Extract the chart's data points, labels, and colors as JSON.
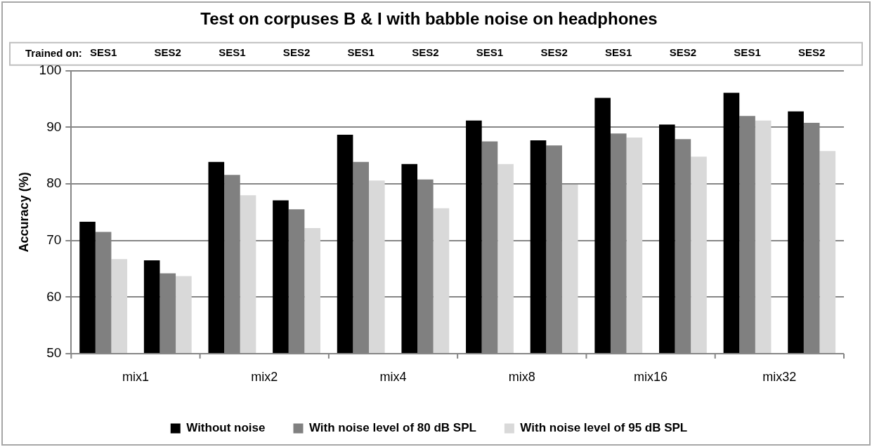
{
  "chart_data": {
    "type": "bar",
    "title": "Test on corpuses B & I with babble noise on headphones",
    "ylabel": "Accuracy (%)",
    "categories": [
      "SES1",
      "SES2",
      "SES1",
      "SES2",
      "SES1",
      "SES2",
      "SES1",
      "SES2",
      "SES1",
      "SES2",
      "SES1",
      "SES2"
    ],
    "series": [
      {
        "name": "Without noise",
        "color": "#000000",
        "values": [
          73.3,
          66.5,
          83.9,
          77.1,
          88.7,
          83.5,
          91.2,
          87.7,
          95.2,
          90.5,
          96.1,
          92.8
        ]
      },
      {
        "name": "With noise level of 80 dB SPL",
        "color": "#808080",
        "values": [
          71.5,
          64.2,
          81.6,
          75.5,
          83.9,
          80.8,
          87.5,
          86.8,
          88.9,
          87.9,
          92.0,
          90.8
        ]
      },
      {
        "name": "With noise level of 95 dB SPL",
        "color": "#d9d9d9",
        "values": [
          66.7,
          63.7,
          78.0,
          72.2,
          80.6,
          75.7,
          83.5,
          79.9,
          88.2,
          84.8,
          91.2,
          85.8
        ]
      }
    ],
    "ylim": [
      50,
      100
    ],
    "yticks": [
      50,
      60,
      70,
      80,
      90,
      100
    ],
    "grid": "y",
    "legend": "bottom",
    "annotations": [
      "Trained on:",
      "mix1",
      "mix2",
      "mix4",
      "mix8",
      "mix16",
      "mix32"
    ]
  }
}
